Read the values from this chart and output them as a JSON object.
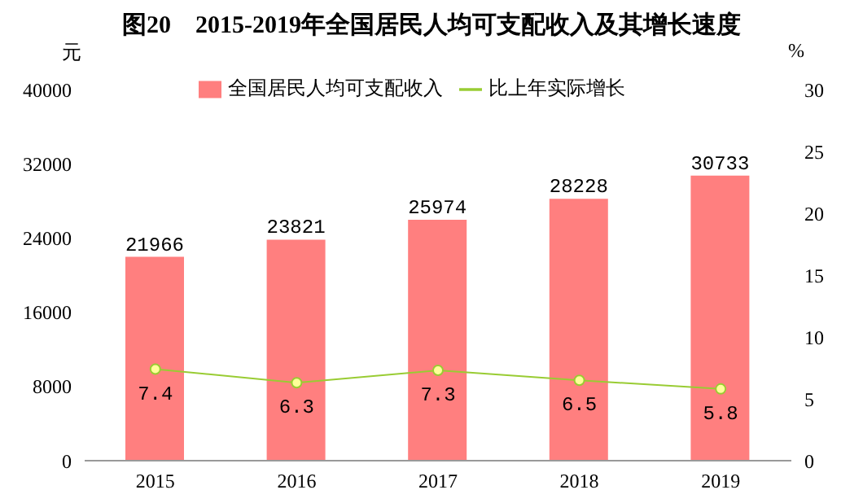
{
  "chart_data": {
    "type": "bar",
    "title": "图20　2015-2019年全国居民人均可支配收入及其增长速度",
    "ylabel": "元",
    "y2label": "%",
    "categories": [
      "2015",
      "2016",
      "2017",
      "2018",
      "2019"
    ],
    "series": [
      {
        "name": "全国居民人均可支配收入",
        "color": "#ff7f7f",
        "values": [
          21966,
          23821,
          25974,
          28228,
          30733
        ]
      },
      {
        "name": "比上年实际增长",
        "type": "line",
        "axis": "y2",
        "color": "#99cc33",
        "values": [
          7.4,
          6.3,
          7.3,
          6.5,
          5.8
        ]
      }
    ],
    "ylim": [
      0,
      40000
    ],
    "yticks": [
      0,
      8000,
      16000,
      24000,
      32000,
      40000
    ],
    "y2lim": [
      0,
      30
    ],
    "y2ticks": [
      0,
      5,
      10,
      15,
      20,
      25,
      30
    ],
    "data_labels": true,
    "legend": "top",
    "marker": "circle"
  }
}
